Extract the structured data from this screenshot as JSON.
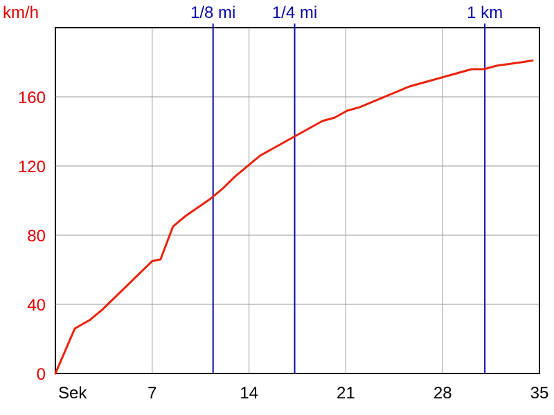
{
  "chart_data": {
    "type": "line",
    "ylabel": "km/h",
    "xlabel": "Sek",
    "xlim": [
      0,
      35
    ],
    "ylim": [
      0,
      200
    ],
    "x_ticks": [
      7,
      14,
      21,
      28,
      35
    ],
    "y_ticks": [
      0,
      40,
      80,
      120,
      160
    ],
    "grid": true,
    "colors": {
      "line": "#e8230a",
      "axis_labels_y": "#e00000",
      "markers": "#0a0aa6",
      "grid": "#999999",
      "axes": "#000000"
    },
    "markers": [
      {
        "label": "1/8 mi",
        "x": 11.4
      },
      {
        "label": "1/4 mi",
        "x": 17.3
      },
      {
        "label": "1 km",
        "x": 31.05
      }
    ],
    "series": [
      {
        "x": [
          0,
          1.4,
          2.5,
          3.4,
          4.3,
          5.2,
          6.1,
          7.0,
          7.6,
          8.5,
          9.4,
          10.3,
          11.2,
          12.1,
          13.0,
          13.9,
          14.8,
          15.7,
          16.6,
          17.5,
          18.4,
          19.3,
          20.2,
          21.1,
          22.0,
          22.9,
          23.8,
          24.7,
          25.6,
          26.5,
          27.4,
          28.3,
          29.2,
          30.1,
          31.0,
          31.9,
          32.8,
          33.7,
          34.5
        ],
        "y": [
          0,
          26,
          31,
          37,
          44,
          51,
          58,
          65,
          66,
          85,
          91,
          96,
          101,
          107,
          114,
          120,
          126,
          130,
          134,
          138,
          142,
          146,
          148,
          152,
          154,
          157,
          160,
          163,
          166,
          168,
          170,
          172,
          174,
          176,
          176,
          178,
          179,
          180,
          181
        ]
      }
    ]
  }
}
